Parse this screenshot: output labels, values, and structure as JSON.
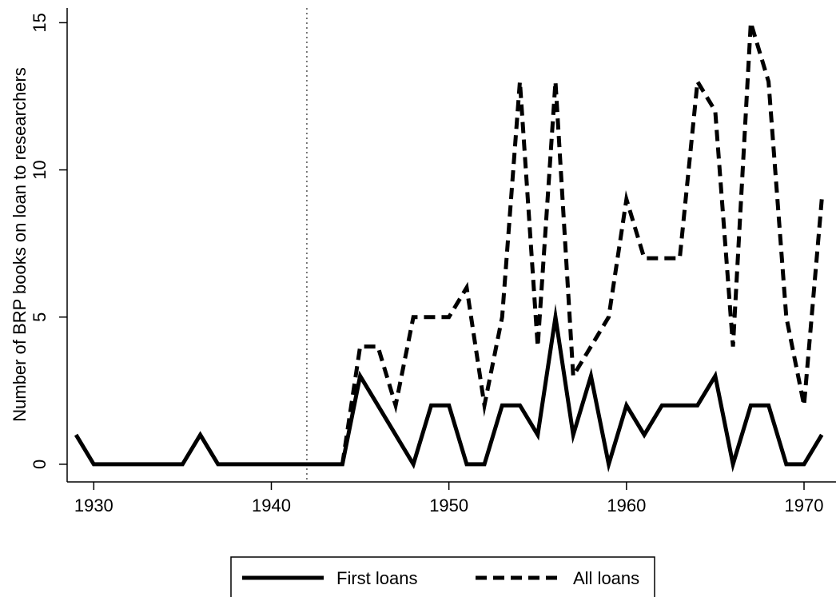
{
  "chart_data": {
    "type": "line",
    "title": "",
    "xlabel": "",
    "ylabel": "Number of BRP books on loan to researchers",
    "xlim": [
      1928.5,
      1971.8
    ],
    "ylim": [
      -0.6,
      15.5
    ],
    "x_ticks": [
      1930,
      1940,
      1950,
      1960,
      1970
    ],
    "y_ticks": [
      0,
      5,
      10,
      15
    ],
    "grid": false,
    "legend_position": "bottom",
    "reference_line": {
      "x": 1942,
      "style": "dotted"
    },
    "series": [
      {
        "name": "First loans",
        "style": "solid",
        "color": "#000000",
        "x": [
          1929,
          1930,
          1931,
          1932,
          1933,
          1934,
          1935,
          1936,
          1937,
          1938,
          1939,
          1940,
          1941,
          1942,
          1943,
          1944,
          1945,
          1946,
          1947,
          1948,
          1949,
          1950,
          1951,
          1952,
          1953,
          1954,
          1955,
          1956,
          1957,
          1958,
          1959,
          1960,
          1961,
          1962,
          1963,
          1964,
          1965,
          1966,
          1967,
          1968,
          1969,
          1970,
          1971
        ],
        "values": [
          1,
          0,
          0,
          0,
          0,
          0,
          0,
          1,
          0,
          0,
          0,
          0,
          0,
          0,
          0,
          0,
          3,
          2,
          1,
          0,
          2,
          2,
          0,
          0,
          2,
          2,
          1,
          5,
          1,
          3,
          0,
          2,
          1,
          2,
          2,
          2,
          3,
          0,
          2,
          2,
          0,
          0,
          1
        ]
      },
      {
        "name": "All loans",
        "style": "dashed",
        "color": "#000000",
        "x": [
          1944,
          1945,
          1946,
          1947,
          1948,
          1949,
          1950,
          1951,
          1952,
          1953,
          1954,
          1955,
          1956,
          1957,
          1958,
          1959,
          1960,
          1961,
          1962,
          1963,
          1964,
          1965,
          1966,
          1967,
          1968,
          1969,
          1970,
          1971
        ],
        "values": [
          0,
          4,
          4,
          2,
          5,
          5,
          5,
          6,
          2,
          5,
          13,
          4,
          13,
          3,
          4,
          5,
          9,
          7,
          7,
          7,
          13,
          12,
          4,
          15,
          13,
          5,
          2,
          9
        ]
      }
    ]
  }
}
